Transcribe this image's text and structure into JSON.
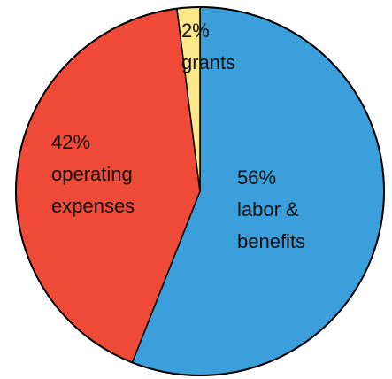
{
  "chart_data": {
    "type": "pie",
    "title": "",
    "start_angle_deg": 0,
    "direction": "clockwise",
    "slices": [
      {
        "label_lines": [
          "56%",
          "labor &",
          "benefits"
        ],
        "value": 56,
        "color": "#3a9fda"
      },
      {
        "label_lines": [
          "42%",
          "operating",
          "expenses"
        ],
        "value": 42,
        "color": "#ee4a37"
      },
      {
        "label_lines": [
          "2%",
          "grants"
        ],
        "value": 2,
        "color": "#fce88a"
      }
    ],
    "outline_color": "#000000",
    "legend": "none"
  }
}
